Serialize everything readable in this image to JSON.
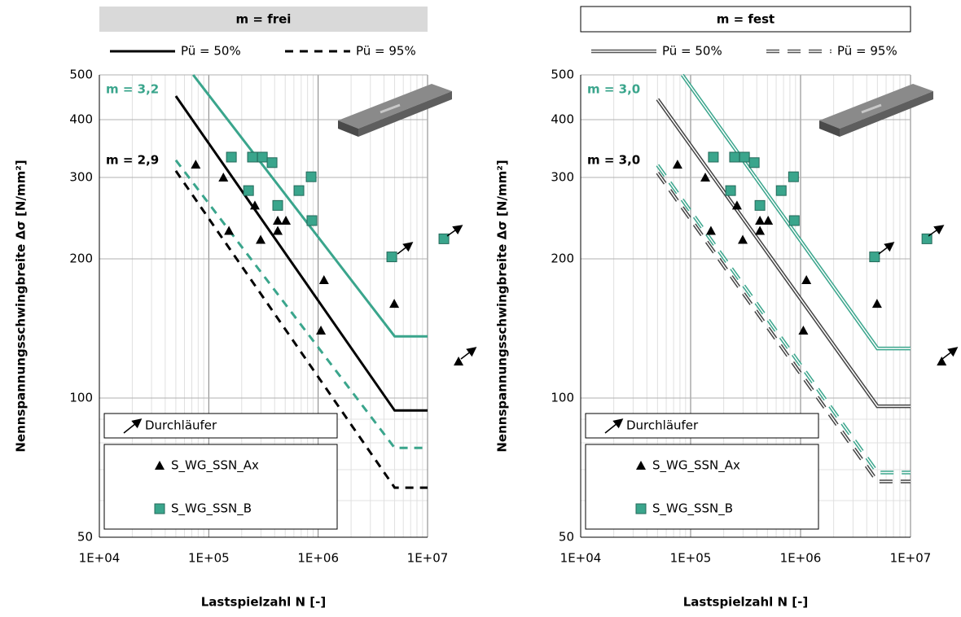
{
  "chart_data": [
    {
      "type": "line",
      "title": "m = frei",
      "title_box": "filled",
      "xlabel": "Lastspielzahl N [-]",
      "ylabel": "Nennspannungsschwingbreite Δσ [N/mm²]",
      "xscale": "log",
      "yscale": "log",
      "grid": true,
      "minor_grid": true,
      "xlim": [
        10000,
        10000000
      ],
      "ylim": [
        50,
        500
      ],
      "xticks": [
        {
          "value": 10000,
          "label": "1E+04"
        },
        {
          "value": 100000,
          "label": "1E+05"
        },
        {
          "value": 1000000,
          "label": "1E+06"
        },
        {
          "value": 10000000,
          "label": "1E+07"
        }
      ],
      "yticks": [
        50,
        100,
        200,
        300,
        400,
        500
      ],
      "line_legend": [
        {
          "name": "Pü = 50%",
          "style": "solid",
          "color": "#000000"
        },
        {
          "name": "Pü = 95%",
          "style": "dashed",
          "color": "#000000"
        }
      ],
      "annotations": [
        {
          "text": "m = 3,2",
          "color": "#3aa58c"
        },
        {
          "text": "m = 2,9",
          "color": "#000000"
        }
      ],
      "lines": [
        {
          "style": "solid",
          "color": "#3aa58c",
          "x": [
            72000,
            5000000,
            10000000
          ],
          "values": [
            500,
            136,
            136
          ]
        },
        {
          "style": "solid",
          "color": "#000000",
          "x": [
            50000,
            5000000,
            10000000
          ],
          "values": [
            450,
            94,
            94
          ]
        },
        {
          "style": "dashed",
          "color": "#3aa58c",
          "x": [
            50000,
            5000000,
            10000000
          ],
          "values": [
            327,
            78,
            78
          ]
        },
        {
          "style": "dashed",
          "color": "#000000",
          "x": [
            50000,
            5000000,
            10000000
          ],
          "values": [
            310,
            64,
            64
          ]
        }
      ],
      "runout_label": "Durchläufer",
      "scatter": [
        {
          "name": "S_WG_SSN_Ax",
          "marker": "triangle",
          "color": "#000000",
          "x": [
            76000,
            136000,
            153000,
            264000,
            298000,
            427000,
            427000,
            507000,
            1130000,
            1060000,
            4960000,
            19200000
          ],
          "values": [
            320,
            300,
            230,
            261,
            220,
            242,
            230,
            242,
            180,
            140,
            160,
            120
          ]
        },
        {
          "name": "S_WG_SSN_B",
          "marker": "square",
          "color": "#3aa58c",
          "x": [
            161000,
            251000,
            309000,
            379000,
            231000,
            427000,
            667000,
            863000,
            877000,
            4710000,
            14100000
          ],
          "values": [
            332,
            332,
            332,
            323,
            281,
            261,
            281,
            301,
            242,
            202,
            221
          ]
        }
      ]
    },
    {
      "type": "line",
      "title": "m = fest",
      "title_box": "outlined",
      "xlabel": "Lastspielzahl N [-]",
      "ylabel": "Nennspannungsschwingbreite Δσ [N/mm²]",
      "xscale": "log",
      "yscale": "log",
      "grid": true,
      "minor_grid": true,
      "xlim": [
        10000,
        10000000
      ],
      "ylim": [
        50,
        500
      ],
      "xticks": [
        {
          "value": 10000,
          "label": "1E+04"
        },
        {
          "value": 100000,
          "label": "1E+05"
        },
        {
          "value": 1000000,
          "label": "1E+06"
        },
        {
          "value": 10000000,
          "label": "1E+07"
        }
      ],
      "yticks": [
        50,
        100,
        200,
        300,
        400,
        500
      ],
      "line_legend": [
        {
          "name": "Pü = 50%",
          "style": "double",
          "color": "#555555"
        },
        {
          "name": "Pü = 95%",
          "style": "double-dashed",
          "color": "#555555"
        }
      ],
      "annotations": [
        {
          "text": "m = 3,0",
          "color": "#3aa58c"
        },
        {
          "text": "m = 3,0",
          "color": "#000000"
        }
      ],
      "lines": [
        {
          "style": "double",
          "color": "#3aa58c",
          "x": [
            84000,
            5000000,
            10000000
          ],
          "values": [
            500,
            128,
            128
          ]
        },
        {
          "style": "double",
          "color": "#444444",
          "x": [
            50000,
            5000000,
            10000000
          ],
          "values": [
            443,
            96,
            96
          ]
        },
        {
          "style": "double-dashed",
          "color": "#3aa58c",
          "x": [
            50000,
            5000000,
            10000000
          ],
          "values": [
            319,
            69,
            69
          ]
        },
        {
          "style": "double-dashed",
          "color": "#444444",
          "x": [
            50000,
            5000000,
            10000000
          ],
          "values": [
            307,
            66,
            66
          ]
        }
      ],
      "runout_label": "Durchläufer",
      "scatter": [
        {
          "name": "S_WG_SSN_Ax",
          "marker": "triangle",
          "color": "#000000",
          "x": [
            76000,
            136000,
            153000,
            264000,
            298000,
            427000,
            427000,
            507000,
            1130000,
            1060000,
            4960000,
            19200000
          ],
          "values": [
            320,
            300,
            230,
            261,
            220,
            242,
            230,
            242,
            180,
            140,
            160,
            120
          ]
        },
        {
          "name": "S_WG_SSN_B",
          "marker": "square",
          "color": "#3aa58c",
          "x": [
            161000,
            251000,
            309000,
            379000,
            231000,
            427000,
            667000,
            863000,
            877000,
            4710000,
            14100000
          ],
          "values": [
            332,
            332,
            332,
            323,
            281,
            261,
            281,
            301,
            242,
            202,
            221
          ]
        }
      ]
    }
  ]
}
